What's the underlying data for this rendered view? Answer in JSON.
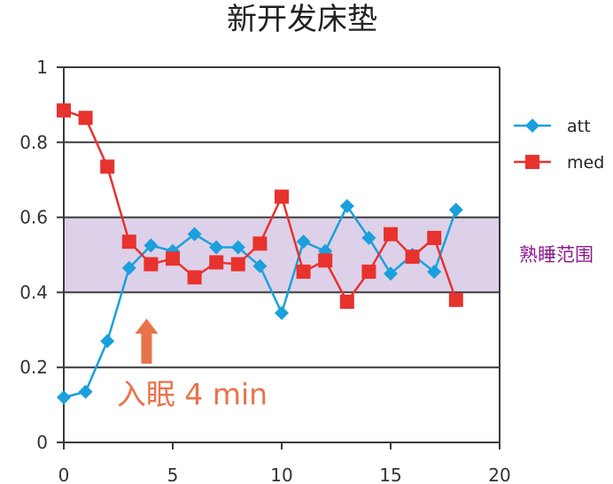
{
  "chart_data": {
    "type": "line",
    "title": "新开发床垫",
    "xlabel": "",
    "ylabel": "",
    "xlim": [
      0,
      20
    ],
    "ylim": [
      0,
      1
    ],
    "x_ticks": [
      0,
      5,
      10,
      15,
      20
    ],
    "y_ticks": [
      0,
      0.2,
      0.4,
      0.6,
      0.8,
      1
    ],
    "x_tick_labels": [
      "0",
      "5",
      "10",
      "15",
      "20"
    ],
    "y_tick_labels": [
      "0",
      "0.2",
      "0.4",
      "0.6",
      "0.8",
      "1"
    ],
    "grid": true,
    "legend_position": "right",
    "x": [
      0,
      1,
      2,
      3,
      4,
      5,
      6,
      7,
      8,
      9,
      10,
      11,
      12,
      13,
      14,
      15,
      16,
      17,
      18
    ],
    "series": [
      {
        "name": "att",
        "color": "#1aa0dc",
        "marker": "diamond",
        "values": [
          0.12,
          0.135,
          0.27,
          0.465,
          0.525,
          0.51,
          0.555,
          0.52,
          0.52,
          0.47,
          0.345,
          0.535,
          0.51,
          0.63,
          0.545,
          0.45,
          0.5,
          0.455,
          0.62
        ]
      },
      {
        "name": "med",
        "color": "#e8322d",
        "marker": "square",
        "values": [
          0.885,
          0.865,
          0.735,
          0.535,
          0.475,
          0.49,
          0.44,
          0.48,
          0.475,
          0.53,
          0.655,
          0.455,
          0.485,
          0.375,
          0.455,
          0.555,
          0.495,
          0.545,
          0.38
        ]
      }
    ],
    "band": {
      "y_range": [
        0.4,
        0.6
      ],
      "label": "熟睡范围",
      "fill_color": "#ddd1e9",
      "label_color": "#8b1a8b"
    },
    "annotation": {
      "text": "入眠 4 min",
      "color": "#e8734a",
      "arrow_x": 3.8,
      "arrow_from_y": 0.21,
      "arrow_to_y": 0.33
    }
  }
}
